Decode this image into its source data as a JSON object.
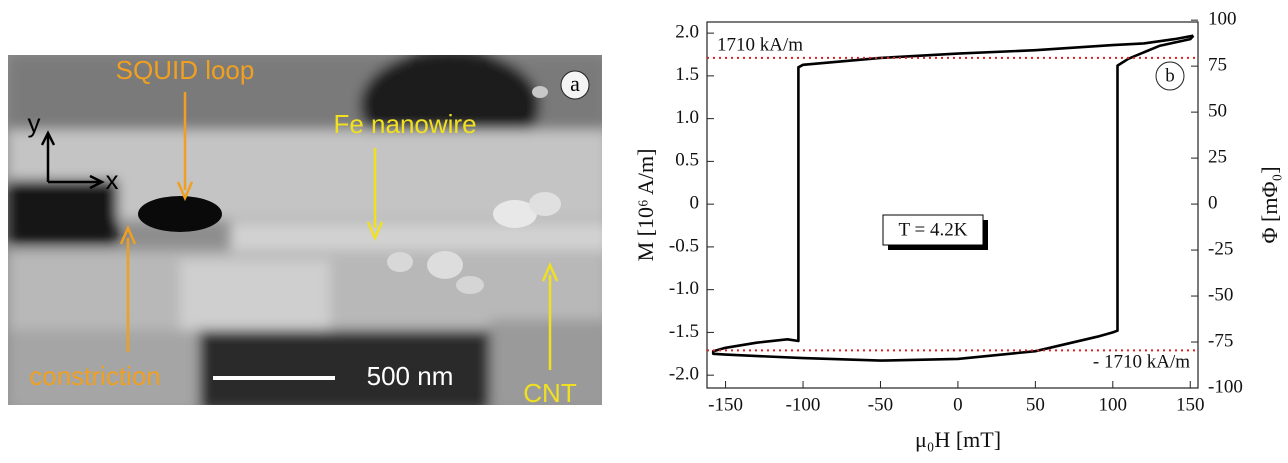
{
  "panel_a": {
    "panel_label": "a",
    "labels": {
      "squid_loop": "SQUID loop",
      "fe_nanowire": "Fe nanowire",
      "constriction": "constriction",
      "scale_bar": "500 nm",
      "cnt": "CNT",
      "axis_y": "y",
      "axis_x": "x"
    }
  },
  "chart_data": {
    "type": "line",
    "panel_label": "b",
    "xlabel": "μ₀H [mT]",
    "ylabel": "M [10⁶ A/m]",
    "y2label": "Φ [mΦ₀]",
    "annotation": "T = 4.2K",
    "color": "#000000",
    "x": [
      152,
      140,
      120,
      100,
      50,
      0,
      -50,
      -100,
      -103,
      -103,
      -110,
      -130,
      -150,
      -158,
      -158,
      -150,
      -100,
      -50,
      0,
      50,
      90,
      100,
      103,
      103,
      110,
      130,
      150,
      152
    ],
    "values": [
      1.97,
      1.93,
      1.88,
      1.86,
      1.8,
      1.76,
      1.71,
      1.63,
      1.6,
      -1.6,
      -1.58,
      -1.62,
      -1.68,
      -1.72,
      -1.75,
      -1.76,
      -1.8,
      -1.83,
      -1.81,
      -1.72,
      -1.55,
      -1.5,
      -1.48,
      1.62,
      1.7,
      1.85,
      1.93,
      1.97
    ],
    "reference_lines": [
      {
        "value": 1.71,
        "label": "1710 kA/m",
        "color": "#e02020"
      },
      {
        "value": -1.71,
        "label": "- 1710 kA/m",
        "color": "#e02020"
      }
    ],
    "xlim": [
      -162,
      155
    ],
    "xticks": [
      -150,
      -100,
      -50,
      0,
      50,
      100,
      150
    ],
    "ylim": [
      -2.15,
      2.13
    ],
    "yticks": [
      {
        "value": 2,
        "label": "2.0"
      },
      1.5,
      {
        "value": 1,
        "label": "1.0"
      },
      0.5,
      0,
      -0.5,
      {
        "value": -1,
        "label": "-1.0"
      },
      -1.5,
      {
        "value": -2,
        "label": "-2.0"
      }
    ],
    "y2lim": [
      -100,
      99
    ],
    "y2ticks": [
      100,
      75,
      50,
      25,
      0,
      -25,
      -50,
      -75,
      -100
    ]
  }
}
